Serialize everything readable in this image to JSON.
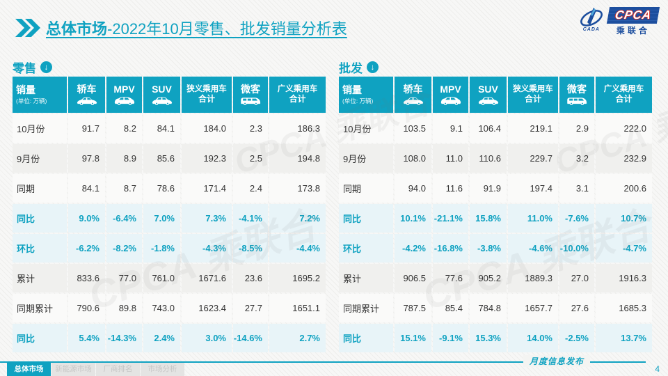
{
  "page": {
    "title_bold": "总体市场",
    "title_rest": "-2022年10月零售、批发销量分析表",
    "footer_note": "月度信息发布",
    "page_number": "4",
    "watermark": "CPCA 乘联合"
  },
  "logo": {
    "cpca": "CPCA",
    "name": "乘联合",
    "cada": "CADA"
  },
  "colors": {
    "primary_teal": "#0FA2C1",
    "percent_row_bg": "#E8F4F8",
    "logo_blue": "#1C4E9E",
    "logo_red": "#CE2B28"
  },
  "nav_tabs": [
    {
      "label": "总体市场",
      "active": true
    },
    {
      "label": "新能源市场",
      "active": false
    },
    {
      "label": "厂商排名",
      "active": false
    },
    {
      "label": "市场分析",
      "active": false
    }
  ],
  "tables": [
    {
      "name": "retail",
      "section_label": "零售",
      "header": {
        "first_col_title": "销量",
        "first_col_subtitle": "(单位: 万辆)",
        "columns": [
          {
            "label": "轿车",
            "icon": "sedan-icon"
          },
          {
            "label": "MPV",
            "icon": "mpv-icon"
          },
          {
            "label": "SUV",
            "icon": "suv-icon"
          },
          {
            "label": "狭义乘用车",
            "label2": "合计"
          },
          {
            "label": "微客",
            "icon": "minivan-icon"
          },
          {
            "label": "广义乘用车",
            "label2": "合计"
          }
        ]
      },
      "rows": [
        {
          "label": "10月份",
          "style": "plain",
          "values": [
            "91.7",
            "8.2",
            "84.1",
            "184.0",
            "2.3",
            "186.3"
          ]
        },
        {
          "label": "9月份",
          "style": "shade",
          "values": [
            "97.8",
            "8.9",
            "85.6",
            "192.3",
            "2.5",
            "194.8"
          ]
        },
        {
          "label": "同期",
          "style": "plain",
          "values": [
            "84.1",
            "8.7",
            "78.6",
            "171.4",
            "2.4",
            "173.8"
          ]
        },
        {
          "label": "同比",
          "style": "percent",
          "values": [
            "9.0%",
            "-6.4%",
            "7.0%",
            "7.3%",
            "-4.1%",
            "7.2%"
          ]
        },
        {
          "label": "环比",
          "style": "percent",
          "values": [
            "-6.2%",
            "-8.2%",
            "-1.8%",
            "-4.3%",
            "-8.5%",
            "-4.4%"
          ]
        },
        {
          "label": "累计",
          "style": "shade",
          "values": [
            "833.6",
            "77.0",
            "761.0",
            "1671.6",
            "23.6",
            "1695.2"
          ]
        },
        {
          "label": "同期累计",
          "style": "plain",
          "values": [
            "790.6",
            "89.8",
            "743.0",
            "1623.4",
            "27.7",
            "1651.1"
          ]
        },
        {
          "label": "同比",
          "style": "percent",
          "values": [
            "5.4%",
            "-14.3%",
            "2.4%",
            "3.0%",
            "-14.6%",
            "2.7%"
          ]
        }
      ]
    },
    {
      "name": "wholesale",
      "section_label": "批发",
      "header": {
        "first_col_title": "销量",
        "first_col_subtitle": "(单位: 万辆)",
        "columns": [
          {
            "label": "轿车",
            "icon": "sedan-icon"
          },
          {
            "label": "MPV",
            "icon": "mpv-icon"
          },
          {
            "label": "SUV",
            "icon": "suv-icon"
          },
          {
            "label": "狭义乘用车",
            "label2": "合计"
          },
          {
            "label": "微客",
            "icon": "minivan-icon"
          },
          {
            "label": "广义乘用车",
            "label2": "合计"
          }
        ]
      },
      "rows": [
        {
          "label": "10月份",
          "style": "plain",
          "values": [
            "103.5",
            "9.1",
            "106.4",
            "219.1",
            "2.9",
            "222.0"
          ]
        },
        {
          "label": "9月份",
          "style": "shade",
          "values": [
            "108.0",
            "11.0",
            "110.6",
            "229.7",
            "3.2",
            "232.9"
          ]
        },
        {
          "label": "同期",
          "style": "plain",
          "values": [
            "94.0",
            "11.6",
            "91.9",
            "197.4",
            "3.1",
            "200.6"
          ]
        },
        {
          "label": "同比",
          "style": "percent",
          "values": [
            "10.1%",
            "-21.1%",
            "15.8%",
            "11.0%",
            "-7.6%",
            "10.7%"
          ]
        },
        {
          "label": "环比",
          "style": "percent",
          "values": [
            "-4.2%",
            "-16.8%",
            "-3.8%",
            "-4.6%",
            "-10.0%",
            "-4.7%"
          ]
        },
        {
          "label": "累计",
          "style": "shade",
          "values": [
            "906.5",
            "77.6",
            "905.2",
            "1889.3",
            "27.0",
            "1916.3"
          ]
        },
        {
          "label": "同期累计",
          "style": "plain",
          "values": [
            "787.5",
            "85.4",
            "784.8",
            "1657.7",
            "27.6",
            "1685.3"
          ]
        },
        {
          "label": "同比",
          "style": "percent",
          "values": [
            "15.1%",
            "-9.1%",
            "15.3%",
            "14.0%",
            "-2.5%",
            "13.7%"
          ]
        }
      ]
    }
  ]
}
